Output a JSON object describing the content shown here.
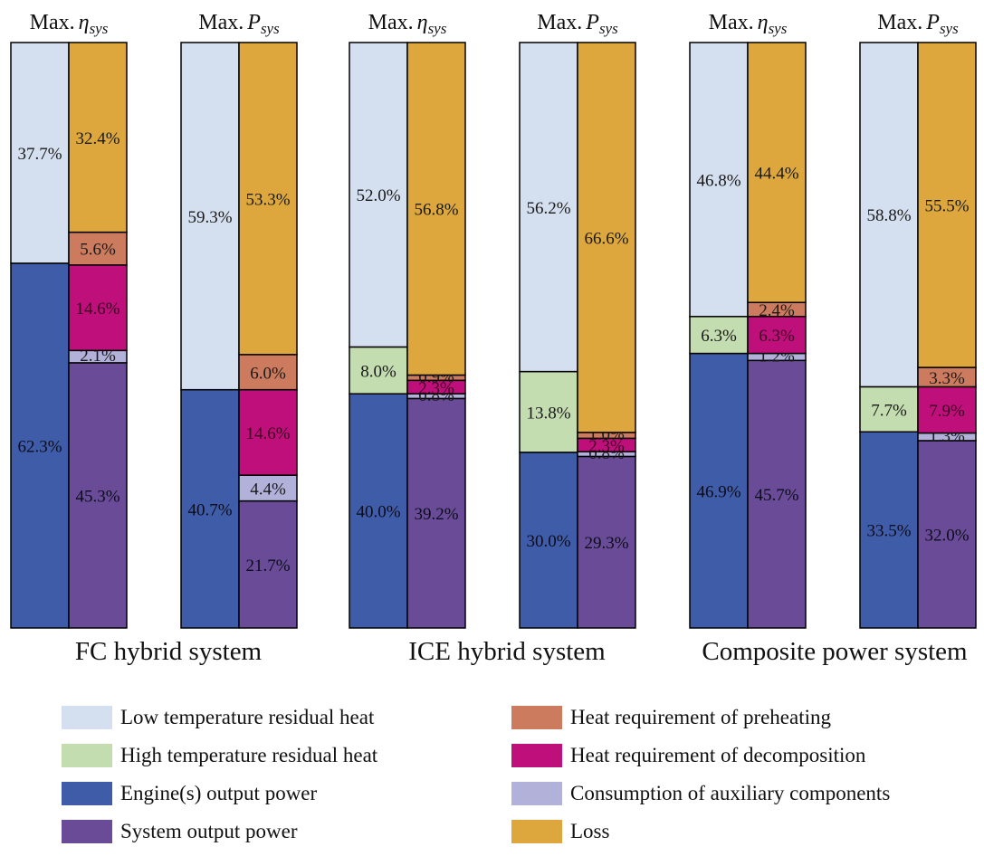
{
  "chart_data": {
    "type": "bar",
    "stacked": true,
    "unit": "%",
    "groups": [
      {
        "name": "FC hybrid system",
        "columns": [
          {
            "header_prefix": "Max.",
            "header_symbol": "η",
            "header_sub": "sys",
            "left": [
              {
                "series": "engine",
                "value": 62.3,
                "label": "62.3%"
              },
              {
                "series": "low",
                "value": 37.7,
                "label": "37.7%"
              }
            ],
            "right": [
              {
                "series": "system",
                "value": 45.3,
                "label": "45.3%"
              },
              {
                "series": "aux",
                "value": 2.1,
                "label": "2.1%"
              },
              {
                "series": "decomp",
                "value": 14.6,
                "label": "14.6%"
              },
              {
                "series": "preheat",
                "value": 5.6,
                "label": "5.6%"
              },
              {
                "series": "loss",
                "value": 32.4,
                "label": "32.4%"
              }
            ]
          },
          {
            "header_prefix": "Max.",
            "header_symbol": "P",
            "header_sub": "sys",
            "left": [
              {
                "series": "engine",
                "value": 40.7,
                "label": "40.7%"
              },
              {
                "series": "low",
                "value": 59.3,
                "label": "59.3%"
              }
            ],
            "right": [
              {
                "series": "system",
                "value": 21.7,
                "label": "21.7%"
              },
              {
                "series": "aux",
                "value": 4.4,
                "label": "4.4%"
              },
              {
                "series": "decomp",
                "value": 14.6,
                "label": "14.6%"
              },
              {
                "series": "preheat",
                "value": 6.0,
                "label": "6.0%"
              },
              {
                "series": "loss",
                "value": 53.3,
                "label": "53.3%"
              }
            ]
          }
        ]
      },
      {
        "name": "ICE hybrid system",
        "columns": [
          {
            "header_prefix": "Max.",
            "header_symbol": "η",
            "header_sub": "sys",
            "left": [
              {
                "series": "engine",
                "value": 40.0,
                "label": "40.0%"
              },
              {
                "series": "high",
                "value": 8.0,
                "label": "8.0%"
              },
              {
                "series": "low",
                "value": 52.0,
                "label": "52.0%"
              }
            ],
            "right": [
              {
                "series": "system",
                "value": 39.2,
                "label": "39.2%"
              },
              {
                "series": "aux",
                "value": 0.8,
                "label": "0.8%"
              },
              {
                "series": "decomp",
                "value": 2.3,
                "label": "2.3%"
              },
              {
                "series": "preheat",
                "value": 0.9,
                "label": "0.9%"
              },
              {
                "series": "loss",
                "value": 56.8,
                "label": "56.8%"
              }
            ]
          },
          {
            "header_prefix": "Max.",
            "header_symbol": "P",
            "header_sub": "sys",
            "left": [
              {
                "series": "engine",
                "value": 30.0,
                "label": "30.0%"
              },
              {
                "series": "high",
                "value": 13.8,
                "label": "13.8%"
              },
              {
                "series": "low",
                "value": 56.2,
                "label": "56.2%"
              }
            ],
            "right": [
              {
                "series": "system",
                "value": 29.3,
                "label": "29.3%"
              },
              {
                "series": "aux",
                "value": 0.8,
                "label": "0.8%"
              },
              {
                "series": "decomp",
                "value": 2.3,
                "label": "2.3%"
              },
              {
                "series": "preheat",
                "value": 1.0,
                "label": "1.0%"
              },
              {
                "series": "loss",
                "value": 66.6,
                "label": "66.6%"
              }
            ]
          }
        ]
      },
      {
        "name": "Composite power system",
        "columns": [
          {
            "header_prefix": "Max.",
            "header_symbol": "η",
            "header_sub": "sys",
            "left": [
              {
                "series": "engine",
                "value": 46.9,
                "label": "46.9%"
              },
              {
                "series": "high",
                "value": 6.3,
                "label": "6.3%"
              },
              {
                "series": "low",
                "value": 46.8,
                "label": "46.8%"
              }
            ],
            "right": [
              {
                "series": "system",
                "value": 45.7,
                "label": "45.7%"
              },
              {
                "series": "aux",
                "value": 1.2,
                "label": "1.2%"
              },
              {
                "series": "decomp",
                "value": 6.3,
                "label": "6.3%"
              },
              {
                "series": "preheat",
                "value": 2.4,
                "label": "2.4%"
              },
              {
                "series": "loss",
                "value": 44.4,
                "label": "44.4%"
              }
            ]
          },
          {
            "header_prefix": "Max.",
            "header_symbol": "P",
            "header_sub": "sys",
            "left": [
              {
                "series": "engine",
                "value": 33.5,
                "label": "33.5%"
              },
              {
                "series": "high",
                "value": 7.7,
                "label": "7.7%"
              },
              {
                "series": "low",
                "value": 58.8,
                "label": "58.8%"
              }
            ],
            "right": [
              {
                "series": "system",
                "value": 32.0,
                "label": "32.0%"
              },
              {
                "series": "aux",
                "value": 1.3,
                "label": "1.3%"
              },
              {
                "series": "decomp",
                "value": 7.9,
                "label": "7.9%"
              },
              {
                "series": "preheat",
                "value": 3.3,
                "label": "3.3%"
              },
              {
                "series": "loss",
                "value": 55.5,
                "label": "55.5%"
              }
            ]
          }
        ]
      }
    ],
    "legend": [
      {
        "key": "low",
        "label": "Low temperature residual heat",
        "color": "#d4dff0"
      },
      {
        "key": "preheat",
        "label": "Heat requirement of preheating",
        "color": "#cd7b5e"
      },
      {
        "key": "high",
        "label": "High temperature residual heat",
        "color": "#c3dcb0"
      },
      {
        "key": "decomp",
        "label": "Heat requirement of decomposition",
        "color": "#bf0f7a"
      },
      {
        "key": "engine",
        "label": "Engine(s) output power",
        "color": "#3e5ca8"
      },
      {
        "key": "aux",
        "label": "Consumption of auxiliary components",
        "color": "#b2b1da"
      },
      {
        "key": "system",
        "label": "System output power",
        "color": "#6a4b98"
      },
      {
        "key": "loss",
        "label": "Loss",
        "color": "#dda73d"
      }
    ]
  }
}
